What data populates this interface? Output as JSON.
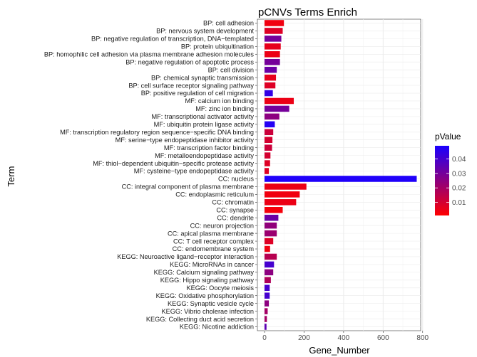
{
  "chart_data": {
    "type": "bar",
    "orientation": "horizontal",
    "title": "pCNVs Terms Enrich",
    "xlabel": "Gene_Number",
    "ylabel": "Term",
    "xlim": [
      0,
      790
    ],
    "xticks": [
      0,
      200,
      400,
      600,
      800
    ],
    "grid": true,
    "legend": {
      "title": "pValue",
      "position": "right",
      "ticks": [
        0.01,
        0.02,
        0.03,
        0.04
      ],
      "range": [
        0.001,
        0.049
      ],
      "color_low": "#ff0000",
      "color_high": "#1a00ff"
    },
    "bars": [
      {
        "term": "BP: cell adhesion",
        "value": 98,
        "p": 0.004
      },
      {
        "term": "BP: nervous system development",
        "value": 92,
        "p": 0.008
      },
      {
        "term": "BP: negative regulation of transcription, DNA−templated",
        "value": 85,
        "p": 0.03
      },
      {
        "term": "BP: protein ubiquitination",
        "value": 82,
        "p": 0.006
      },
      {
        "term": "BP: homophilic cell adhesion via plasma membrane adhesion molecules",
        "value": 78,
        "p": 0.005
      },
      {
        "term": "BP: negative regulation of apoptotic process",
        "value": 78,
        "p": 0.03
      },
      {
        "term": "BP: cell division",
        "value": 62,
        "p": 0.032
      },
      {
        "term": "BP: chemical synaptic transmission",
        "value": 58,
        "p": 0.006
      },
      {
        "term": "BP: cell surface receptor signaling pathway",
        "value": 55,
        "p": 0.008
      },
      {
        "term": "BP: positive regulation of cell migration",
        "value": 42,
        "p": 0.044
      },
      {
        "term": "MF: calcium ion binding",
        "value": 148,
        "p": 0.005
      },
      {
        "term": "MF: zinc ion binding",
        "value": 125,
        "p": 0.03
      },
      {
        "term": "MF: transcriptional activator activity",
        "value": 75,
        "p": 0.025
      },
      {
        "term": "MF: ubiquitin protein ligase activity",
        "value": 52,
        "p": 0.047
      },
      {
        "term": "MF: transcription regulatory region sequence−specific DNA binding",
        "value": 44,
        "p": 0.012
      },
      {
        "term": "MF: serine−type endopeptidase inhibitor activity",
        "value": 40,
        "p": 0.01
      },
      {
        "term": "MF: transcription factor binding",
        "value": 38,
        "p": 0.012
      },
      {
        "term": "MF: metalloendopeptidase activity",
        "value": 30,
        "p": 0.01
      },
      {
        "term": "MF: thiol−dependent ubiquitin−specific protease activity",
        "value": 28,
        "p": 0.008
      },
      {
        "term": "MF: cysteine−type endopeptidase activity",
        "value": 22,
        "p": 0.008
      },
      {
        "term": "CC: nucleus",
        "value": 770,
        "p": 0.048
      },
      {
        "term": "CC: integral component of plasma membrane",
        "value": 212,
        "p": 0.005
      },
      {
        "term": "CC: endoplasmic reticulum",
        "value": 178,
        "p": 0.004
      },
      {
        "term": "CC: chromatin",
        "value": 160,
        "p": 0.005
      },
      {
        "term": "CC: synapse",
        "value": 92,
        "p": 0.003
      },
      {
        "term": "CC: dendrite",
        "value": 70,
        "p": 0.032
      },
      {
        "term": "CC: neuron projection",
        "value": 62,
        "p": 0.024
      },
      {
        "term": "CC: apical plasma membrane",
        "value": 62,
        "p": 0.022
      },
      {
        "term": "CC: T cell receptor complex",
        "value": 44,
        "p": 0.008
      },
      {
        "term": "CC: endomembrane system",
        "value": 28,
        "p": 0.004
      },
      {
        "term": "KEGG: Neuroactive ligand−receptor interaction",
        "value": 62,
        "p": 0.016
      },
      {
        "term": "KEGG: MicroRNAs in cancer",
        "value": 48,
        "p": 0.04
      },
      {
        "term": "KEGG: Calcium signaling pathway",
        "value": 44,
        "p": 0.025
      },
      {
        "term": "KEGG: Hippo signaling pathway",
        "value": 32,
        "p": 0.018
      },
      {
        "term": "KEGG: Oocyte meiosis",
        "value": 26,
        "p": 0.04
      },
      {
        "term": "KEGG: Oxidative phosphorylation",
        "value": 26,
        "p": 0.04
      },
      {
        "term": "KEGG: Synaptic vesicle cycle",
        "value": 22,
        "p": 0.025
      },
      {
        "term": "KEGG: Vibrio cholerae infection",
        "value": 16,
        "p": 0.02
      },
      {
        "term": "KEGG: Collecting duct acid secretion",
        "value": 12,
        "p": 0.02
      },
      {
        "term": "KEGG: Nicotine addiction",
        "value": 10,
        "p": 0.035
      }
    ]
  }
}
